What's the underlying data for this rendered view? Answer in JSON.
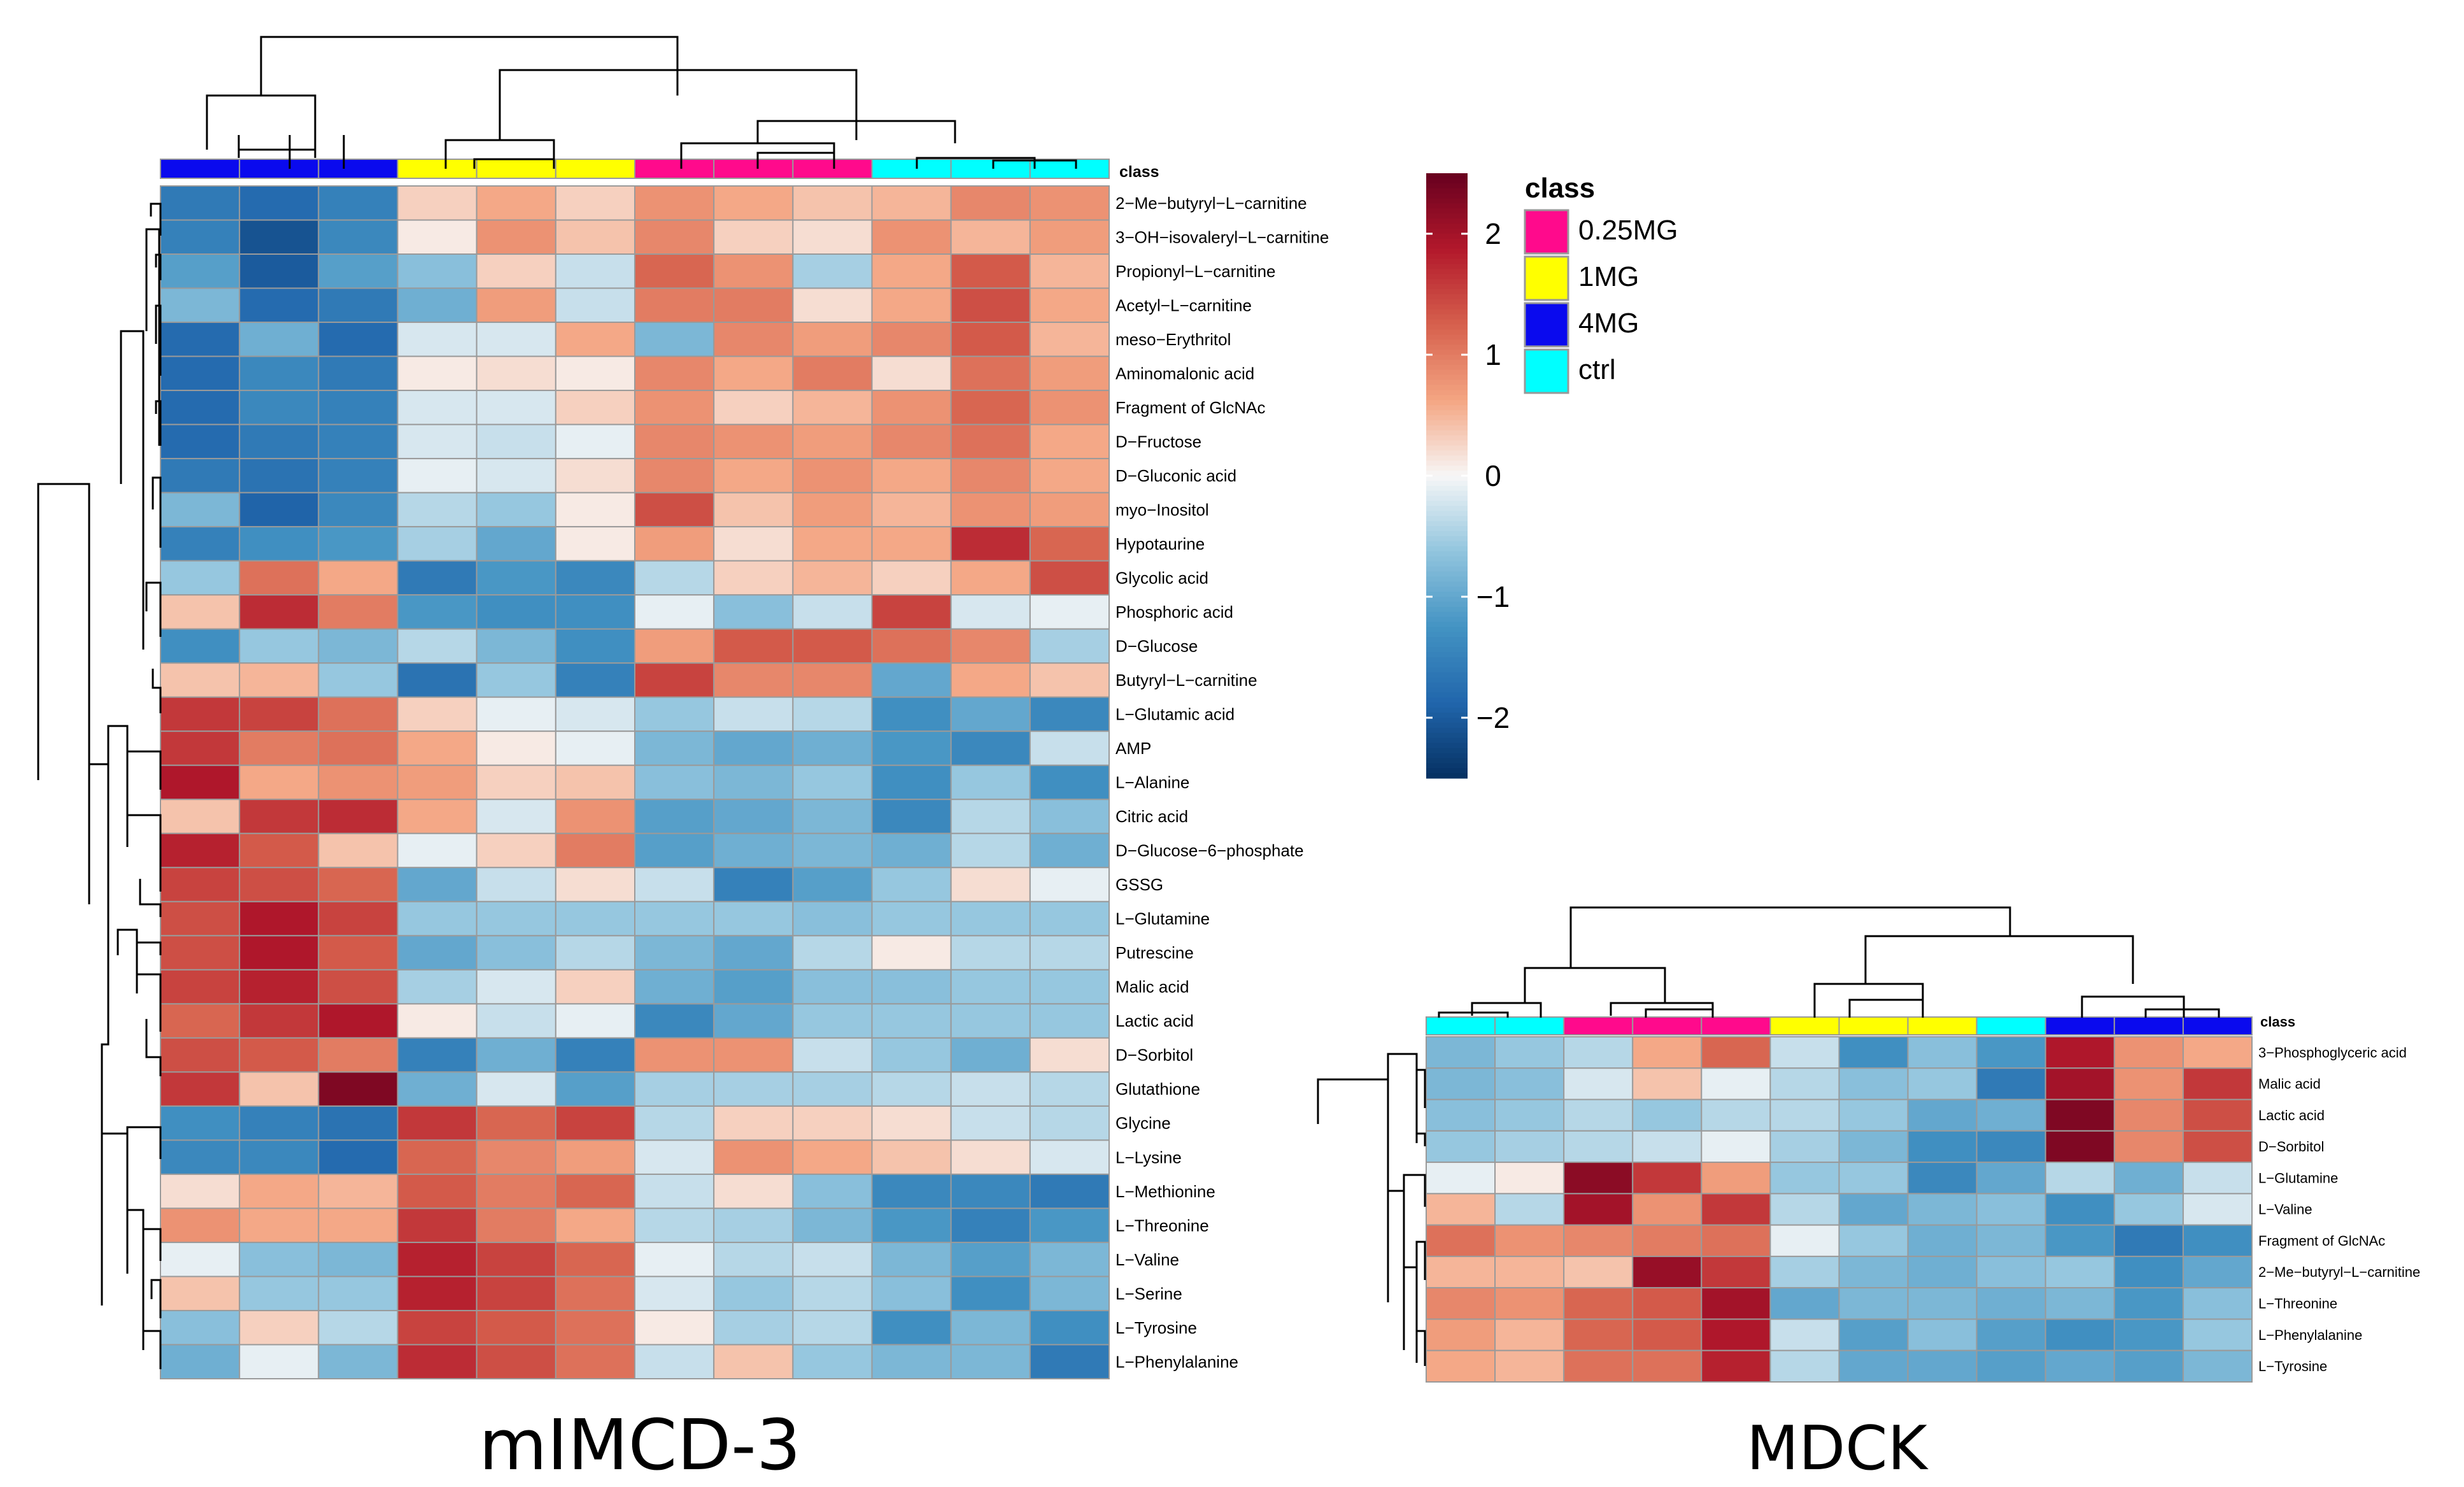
{
  "chart_data": [
    {
      "type": "heatmap",
      "title": "mIMCD-3",
      "class_label": "class",
      "column_classes": [
        "4MG",
        "4MG",
        "4MG",
        "1MG",
        "1MG",
        "1MG",
        "0.25MG",
        "0.25MG",
        "0.25MG",
        "ctrl",
        "ctrl",
        "ctrl"
      ],
      "rows": [
        "2−Me−butyryl−L−carnitine",
        "3−OH−isovaleryl−L−carnitine",
        "Propionyl−L−carnitine",
        "Acetyl−L−carnitine",
        "meso−Erythritol",
        "Aminomalonic acid",
        "Fragment of GlcNAc",
        "D−Fructose",
        "D−Gluconic acid",
        "myo−Inositol",
        "Hypotaurine",
        "Glycolic acid",
        "Phosphoric acid",
        "D−Glucose",
        "Butyryl−L−carnitine",
        "L−Glutamic acid",
        "AMP",
        "L−Alanine",
        "Citric acid",
        "D−Glucose−6−phosphate",
        "GSSG",
        "L−Glutamine",
        "Putrescine",
        "Malic acid",
        "Lactic acid",
        "D−Sorbitol",
        "Glutathione",
        "Glycine",
        "L−Lysine",
        "L−Methionine",
        "L−Threonine",
        "L−Valine",
        "L−Serine",
        "L−Tyrosine",
        "L−Phenylalanine"
      ],
      "values": [
        [
          -1.6,
          -1.8,
          -1.5,
          0.3,
          0.6,
          0.3,
          0.8,
          0.6,
          0.4,
          0.5,
          0.9,
          0.8
        ],
        [
          -1.5,
          -2.1,
          -1.4,
          0.1,
          0.8,
          0.4,
          0.9,
          0.3,
          0.2,
          0.8,
          0.5,
          0.7
        ],
        [
          -1.1,
          -2.0,
          -1.1,
          -0.7,
          0.3,
          -0.3,
          1.2,
          0.8,
          -0.5,
          0.6,
          1.3,
          0.5
        ],
        [
          -0.8,
          -1.8,
          -1.6,
          -0.9,
          0.7,
          -0.3,
          1.0,
          1.0,
          0.2,
          0.6,
          1.4,
          0.6
        ],
        [
          -1.8,
          -0.9,
          -1.8,
          -0.2,
          -0.2,
          0.6,
          -0.8,
          0.9,
          0.7,
          0.9,
          1.3,
          0.5
        ],
        [
          -1.8,
          -1.4,
          -1.6,
          0.1,
          0.2,
          0.1,
          0.9,
          0.6,
          1.0,
          0.2,
          1.1,
          0.7
        ],
        [
          -1.8,
          -1.4,
          -1.5,
          -0.2,
          -0.2,
          0.3,
          0.8,
          0.3,
          0.5,
          0.8,
          1.2,
          0.8
        ],
        [
          -1.8,
          -1.6,
          -1.5,
          -0.2,
          -0.3,
          -0.1,
          0.9,
          0.8,
          0.7,
          0.9,
          1.1,
          0.6
        ],
        [
          -1.6,
          -1.7,
          -1.5,
          -0.1,
          -0.2,
          0.2,
          0.9,
          0.6,
          0.8,
          0.6,
          0.9,
          0.6
        ],
        [
          -0.8,
          -1.9,
          -1.4,
          -0.4,
          -0.6,
          0.1,
          1.4,
          0.4,
          0.7,
          0.5,
          0.8,
          0.7
        ],
        [
          -1.5,
          -1.3,
          -1.2,
          -0.5,
          -1.0,
          0.1,
          0.7,
          0.2,
          0.6,
          0.6,
          1.7,
          1.2
        ],
        [
          -0.6,
          1.1,
          0.6,
          -1.6,
          -1.2,
          -1.4,
          -0.4,
          0.3,
          0.5,
          0.3,
          0.6,
          1.4
        ],
        [
          0.4,
          1.7,
          1.0,
          -1.2,
          -1.3,
          -1.3,
          -0.1,
          -0.7,
          -0.3,
          1.5,
          -0.2,
          -0.1
        ],
        [
          -1.3,
          -0.6,
          -0.8,
          -0.4,
          -0.8,
          -1.3,
          0.7,
          1.3,
          1.3,
          1.1,
          0.9,
          -0.5
        ],
        [
          0.4,
          0.5,
          -0.6,
          -1.7,
          -0.6,
          -1.5,
          1.5,
          0.9,
          0.9,
          -1.0,
          0.6,
          0.4
        ],
        [
          1.6,
          1.5,
          1.1,
          0.3,
          -0.1,
          -0.2,
          -0.6,
          -0.3,
          -0.4,
          -1.3,
          -1.0,
          -1.4
        ],
        [
          1.6,
          1.0,
          1.1,
          0.6,
          0.1,
          -0.1,
          -0.8,
          -1.0,
          -0.9,
          -1.2,
          -1.4,
          -0.3
        ],
        [
          1.9,
          0.6,
          0.8,
          0.7,
          0.3,
          0.4,
          -0.7,
          -0.8,
          -0.6,
          -1.3,
          -0.6,
          -1.3
        ],
        [
          0.4,
          1.6,
          1.7,
          0.6,
          -0.2,
          0.8,
          -1.1,
          -1.0,
          -0.8,
          -1.4,
          -0.4,
          -0.7
        ],
        [
          1.8,
          1.3,
          0.4,
          -0.1,
          0.3,
          1.0,
          -1.1,
          -0.9,
          -0.8,
          -0.9,
          -0.4,
          -0.9
        ],
        [
          1.5,
          1.4,
          1.2,
          -1.0,
          -0.3,
          0.2,
          -0.3,
          -1.5,
          -1.1,
          -0.6,
          0.2,
          -0.1
        ],
        [
          1.4,
          1.9,
          1.5,
          -0.6,
          -0.6,
          -0.6,
          -0.6,
          -0.6,
          -0.7,
          -0.6,
          -0.6,
          -0.6
        ],
        [
          1.4,
          1.9,
          1.3,
          -1.0,
          -0.7,
          -0.4,
          -0.8,
          -1.0,
          -0.4,
          0.1,
          -0.4,
          -0.4
        ],
        [
          1.5,
          1.8,
          1.4,
          -0.5,
          -0.2,
          0.3,
          -0.9,
          -1.1,
          -0.7,
          -0.7,
          -0.6,
          -0.6
        ],
        [
          1.2,
          1.6,
          1.9,
          0.1,
          -0.3,
          -0.1,
          -1.4,
          -1.0,
          -0.6,
          -0.6,
          -0.6,
          -0.6
        ],
        [
          1.4,
          1.3,
          1.0,
          -1.5,
          -0.9,
          -1.5,
          0.8,
          0.8,
          -0.3,
          -0.6,
          -0.9,
          0.2
        ],
        [
          1.6,
          0.4,
          2.3,
          -0.9,
          -0.2,
          -1.1,
          -0.5,
          -0.5,
          -0.5,
          -0.4,
          -0.3,
          -0.4
        ],
        [
          -1.3,
          -1.5,
          -1.7,
          1.6,
          1.2,
          1.5,
          -0.4,
          0.3,
          0.3,
          0.2,
          -0.3,
          -0.4
        ],
        [
          -1.4,
          -1.4,
          -1.8,
          1.2,
          0.9,
          0.7,
          -0.2,
          0.8,
          0.6,
          0.4,
          0.2,
          -0.2
        ],
        [
          0.2,
          0.6,
          0.5,
          1.3,
          1.0,
          1.2,
          -0.3,
          0.2,
          -0.7,
          -1.4,
          -1.4,
          -1.6
        ],
        [
          0.8,
          0.6,
          0.6,
          1.6,
          1.0,
          0.6,
          -0.4,
          -0.5,
          -0.8,
          -1.2,
          -1.5,
          -1.2
        ],
        [
          -0.1,
          -0.7,
          -0.8,
          1.8,
          1.5,
          1.2,
          -0.1,
          -0.4,
          -0.3,
          -0.8,
          -1.1,
          -0.8
        ],
        [
          0.4,
          -0.6,
          -0.6,
          1.8,
          1.5,
          1.1,
          -0.2,
          -0.6,
          -0.4,
          -0.7,
          -1.3,
          -0.8
        ],
        [
          -0.7,
          0.3,
          -0.4,
          1.5,
          1.3,
          1.1,
          0.1,
          -0.5,
          -0.4,
          -1.3,
          -0.8,
          -1.3
        ],
        [
          -0.9,
          -0.1,
          -0.8,
          1.7,
          1.4,
          1.1,
          -0.3,
          0.4,
          -0.6,
          -0.8,
          -0.8,
          -1.6
        ]
      ]
    },
    {
      "type": "heatmap",
      "title": "MDCK",
      "class_label": "class",
      "column_classes": [
        "ctrl",
        "ctrl",
        "0.25MG",
        "0.25MG",
        "0.25MG",
        "1MG",
        "1MG",
        "1MG",
        "ctrl",
        "4MG",
        "4MG",
        "4MG"
      ],
      "rows": [
        "3−Phosphoglyceric acid",
        "Malic acid",
        "Lactic acid",
        "D−Sorbitol",
        "L−Glutamine",
        "L−Valine",
        "Fragment of GlcNAc",
        "2−Me−butyryl−L−carnitine",
        "L−Threonine",
        "L−Phenylalanine",
        "L−Tyrosine"
      ],
      "values": [
        [
          -0.8,
          -0.6,
          -0.4,
          0.6,
          1.2,
          -0.3,
          -1.3,
          -0.7,
          -1.2,
          1.9,
          0.8,
          0.6
        ],
        [
          -0.8,
          -0.7,
          -0.2,
          0.4,
          -0.1,
          -0.4,
          -0.7,
          -0.6,
          -1.6,
          2.0,
          0.8,
          1.6
        ],
        [
          -0.7,
          -0.6,
          -0.4,
          -0.6,
          -0.4,
          -0.4,
          -0.6,
          -1.0,
          -0.9,
          2.3,
          0.9,
          1.4
        ],
        [
          -0.6,
          -0.5,
          -0.4,
          -0.3,
          -0.1,
          -0.5,
          -0.8,
          -1.3,
          -1.4,
          2.3,
          0.9,
          1.4
        ],
        [
          -0.1,
          0.1,
          2.2,
          1.6,
          0.7,
          -0.6,
          -0.6,
          -1.4,
          -1.0,
          -0.4,
          -0.9,
          -0.3
        ],
        [
          0.5,
          -0.4,
          2.0,
          0.8,
          1.6,
          -0.4,
          -1.0,
          -0.8,
          -0.7,
          -1.3,
          -0.6,
          -0.2
        ],
        [
          1.1,
          0.8,
          0.9,
          1.0,
          1.1,
          -0.1,
          -0.6,
          -0.9,
          -0.8,
          -1.2,
          -1.6,
          -1.3
        ],
        [
          0.5,
          0.5,
          0.4,
          2.1,
          1.6,
          -0.5,
          -0.8,
          -0.9,
          -0.7,
          -0.6,
          -1.3,
          -1.0
        ],
        [
          0.9,
          0.8,
          1.2,
          1.3,
          2.0,
          -1.0,
          -0.8,
          -0.8,
          -0.9,
          -0.8,
          -1.2,
          -0.7
        ],
        [
          0.7,
          0.5,
          1.2,
          1.3,
          1.9,
          -0.3,
          -1.1,
          -0.7,
          -1.1,
          -1.3,
          -1.2,
          -0.6
        ],
        [
          0.6,
          0.5,
          1.1,
          1.1,
          1.8,
          -0.4,
          -1.0,
          -1.0,
          -1.1,
          -1.0,
          -1.1,
          -0.8
        ]
      ]
    }
  ],
  "legend": {
    "title": "class",
    "items": [
      {
        "label": "0.25MG",
        "color": "#ff0a8c"
      },
      {
        "label": "1MG",
        "color": "#ffff00"
      },
      {
        "label": "4MG",
        "color": "#0a0aee"
      },
      {
        "label": "ctrl",
        "color": "#00ffff"
      }
    ]
  },
  "colorbar": {
    "ticks": [
      2,
      1,
      0,
      -1,
      -2
    ],
    "tick_labels": [
      "2",
      "1",
      "0",
      "−1",
      "−2"
    ],
    "range": [
      -2.5,
      2.5
    ],
    "stops": [
      "#053061",
      "#2166ac",
      "#4393c3",
      "#92c5de",
      "#f7f7f7",
      "#f4a582",
      "#d6604d",
      "#b2182b",
      "#67001f"
    ]
  },
  "titles": {
    "left": "mIMCD-3",
    "right": "MDCK"
  }
}
